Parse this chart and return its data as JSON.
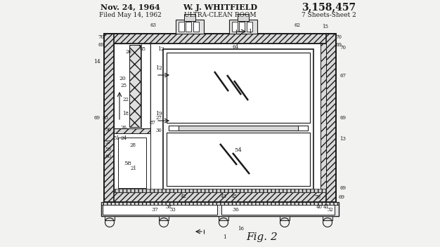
{
  "bg": "#f2f2f0",
  "black": "#1a1a1a",
  "gray": "#aaaaaa",
  "lgray": "#d8d8d8",
  "white": "#ffffff",
  "header_line1_left": "Nov. 24, 1964",
  "header_line1_center": "W. J. WHITFIELD",
  "header_line1_right": "3,158,457",
  "header_line2_left": "Filed May 14, 1962",
  "header_line2_center": "ULTRA-CLEAN ROOM",
  "header_line2_right": "7 Sheets-Sheet 2",
  "caption": "Fig. 2",
  "fig_width": 6.26,
  "fig_height": 3.52,
  "dpi": 100,
  "ox": 148,
  "oy": 48,
  "ow": 330,
  "oh": 240,
  "wall": 14
}
